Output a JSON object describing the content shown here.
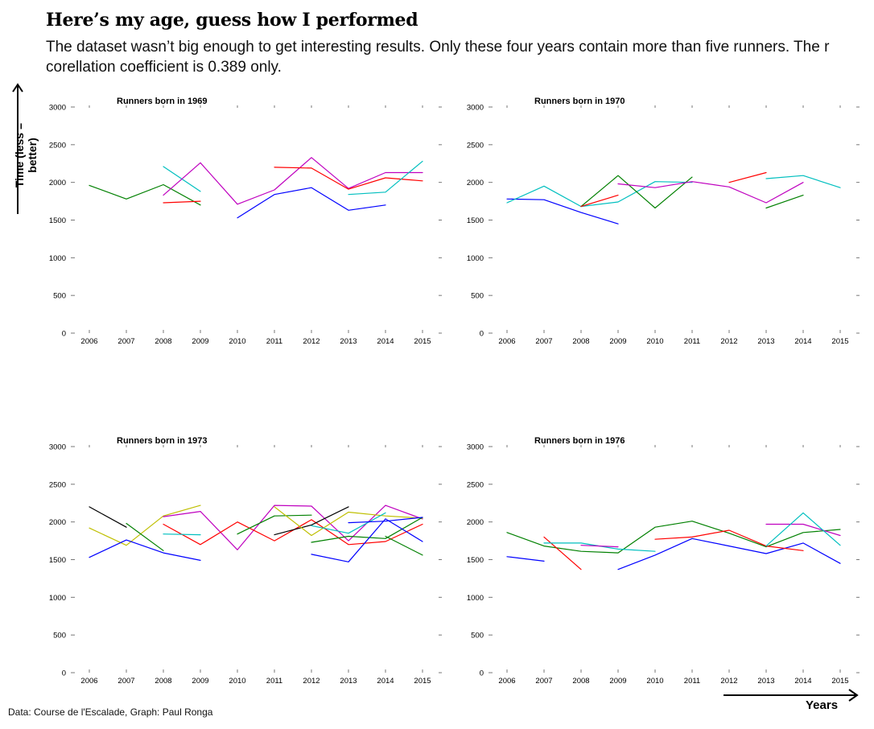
{
  "header": {
    "title": "Here’s my age, guess how I performed",
    "subtitle": "The dataset wasn’t big enough to get interesting results. Only these four years contain more than five runners. The r corellation coefficient is 0.389 only."
  },
  "footer": {
    "source": "Data: Course de l'Escalade, Graph: Paul Ronga"
  },
  "axes": {
    "ylabel": "Time (less = better)",
    "xlabel": "Years"
  },
  "chart_data": [
    {
      "type": "line",
      "title": "Runners born in 1969",
      "x": [
        2006,
        2007,
        2008,
        2009,
        2010,
        2011,
        2012,
        2013,
        2014,
        2015
      ],
      "ylim": [
        0,
        3000
      ],
      "yticks": [
        0,
        500,
        1000,
        1500,
        2000,
        2500,
        3000
      ],
      "grid": false,
      "series": [
        {
          "color": "#008000",
          "points": [
            [
              2006,
              1960
            ],
            [
              2007,
              1780
            ],
            [
              2008,
              1970
            ],
            [
              2009,
              1700
            ]
          ]
        },
        {
          "color": "#00bfbf",
          "points": [
            [
              2008,
              2210
            ],
            [
              2009,
              1880
            ]
          ]
        },
        {
          "color": "#ff0000",
          "points": [
            [
              2008,
              1730
            ],
            [
              2009,
              1750
            ]
          ]
        },
        {
          "color": "#bf00bf",
          "points": [
            [
              2008,
              1830
            ],
            [
              2009,
              2260
            ],
            [
              2010,
              1710
            ],
            [
              2011,
              1900
            ],
            [
              2012,
              2330
            ],
            [
              2013,
              1920
            ],
            [
              2014,
              2130
            ],
            [
              2015,
              2130
            ]
          ]
        },
        {
          "color": "#0000ff",
          "points": [
            [
              2010,
              1530
            ],
            [
              2011,
              1840
            ],
            [
              2012,
              1930
            ],
            [
              2013,
              1630
            ],
            [
              2014,
              1700
            ]
          ]
        },
        {
          "color": "#ff0000",
          "points": [
            [
              2011,
              2200
            ],
            [
              2012,
              2190
            ],
            [
              2013,
              1910
            ],
            [
              2014,
              2060
            ],
            [
              2015,
              2020
            ]
          ]
        },
        {
          "color": "#00bfbf",
          "points": [
            [
              2013,
              1840
            ],
            [
              2014,
              1870
            ],
            [
              2015,
              2280
            ]
          ]
        }
      ]
    },
    {
      "type": "line",
      "title": "Runners born in 1970",
      "x": [
        2006,
        2007,
        2008,
        2009,
        2010,
        2011,
        2012,
        2013,
        2014,
        2015
      ],
      "ylim": [
        0,
        3000
      ],
      "yticks": [
        0,
        500,
        1000,
        1500,
        2000,
        2500,
        3000
      ],
      "grid": false,
      "series": [
        {
          "color": "#0000ff",
          "points": [
            [
              2006,
              1780
            ],
            [
              2007,
              1770
            ],
            [
              2008,
              1600
            ],
            [
              2009,
              1450
            ]
          ]
        },
        {
          "color": "#00bfbf",
          "points": [
            [
              2006,
              1730
            ],
            [
              2007,
              1950
            ],
            [
              2008,
              1680
            ],
            [
              2009,
              1740
            ],
            [
              2010,
              2010
            ],
            [
              2011,
              2000
            ]
          ]
        },
        {
          "color": "#008000",
          "points": [
            [
              2008,
              1680
            ],
            [
              2009,
              2090
            ],
            [
              2010,
              1660
            ],
            [
              2011,
              2070
            ]
          ]
        },
        {
          "color": "#ff0000",
          "points": [
            [
              2008,
              1680
            ],
            [
              2009,
              1830
            ]
          ]
        },
        {
          "color": "#bf00bf",
          "points": [
            [
              2009,
              1980
            ],
            [
              2010,
              1930
            ],
            [
              2011,
              2010
            ],
            [
              2012,
              1940
            ],
            [
              2013,
              1730
            ],
            [
              2014,
              2000
            ]
          ]
        },
        {
          "color": "#ff0000",
          "points": [
            [
              2012,
              2000
            ],
            [
              2013,
              2130
            ]
          ]
        },
        {
          "color": "#00bfbf",
          "points": [
            [
              2013,
              2050
            ],
            [
              2014,
              2090
            ],
            [
              2015,
              1930
            ]
          ]
        },
        {
          "color": "#008000",
          "points": [
            [
              2013,
              1660
            ],
            [
              2014,
              1830
            ]
          ]
        }
      ]
    },
    {
      "type": "line",
      "title": "Runners born in 1973",
      "x": [
        2006,
        2007,
        2008,
        2009,
        2010,
        2011,
        2012,
        2013,
        2014,
        2015
      ],
      "ylim": [
        0,
        3000
      ],
      "yticks": [
        0,
        500,
        1000,
        1500,
        2000,
        2500,
        3000
      ],
      "grid": false,
      "series": [
        {
          "color": "#000000",
          "points": [
            [
              2006,
              2200
            ],
            [
              2007,
              1930
            ]
          ]
        },
        {
          "color": "#bfbf00",
          "points": [
            [
              2006,
              1920
            ],
            [
              2007,
              1690
            ],
            [
              2008,
              2080
            ],
            [
              2009,
              2220
            ]
          ]
        },
        {
          "color": "#0000ff",
          "points": [
            [
              2006,
              1530
            ],
            [
              2007,
              1760
            ],
            [
              2008,
              1590
            ],
            [
              2009,
              1490
            ]
          ]
        },
        {
          "color": "#008000",
          "points": [
            [
              2007,
              1980
            ],
            [
              2008,
              1620
            ]
          ]
        },
        {
          "color": "#bf00bf",
          "points": [
            [
              2008,
              2070
            ],
            [
              2009,
              2140
            ],
            [
              2010,
              1630
            ],
            [
              2011,
              2220
            ],
            [
              2012,
              2210
            ],
            [
              2013,
              1750
            ],
            [
              2014,
              2220
            ],
            [
              2015,
              2040
            ]
          ]
        },
        {
          "color": "#ff0000",
          "points": [
            [
              2008,
              1970
            ],
            [
              2009,
              1700
            ],
            [
              2010,
              2000
            ],
            [
              2011,
              1750
            ],
            [
              2012,
              2030
            ],
            [
              2013,
              1700
            ],
            [
              2014,
              1740
            ],
            [
              2015,
              1970
            ]
          ]
        },
        {
          "color": "#00bfbf",
          "points": [
            [
              2008,
              1840
            ],
            [
              2009,
              1830
            ]
          ]
        },
        {
          "color": "#008000",
          "points": [
            [
              2010,
              1840
            ],
            [
              2011,
              2080
            ],
            [
              2012,
              2090
            ]
          ]
        },
        {
          "color": "#000000",
          "points": [
            [
              2011,
              1830
            ],
            [
              2012,
              1960
            ],
            [
              2013,
              2200
            ]
          ]
        },
        {
          "color": "#bfbf00",
          "points": [
            [
              2011,
              2200
            ],
            [
              2012,
              1820
            ],
            [
              2013,
              2130
            ],
            [
              2014,
              2080
            ],
            [
              2015,
              2050
            ]
          ]
        },
        {
          "color": "#008000",
          "points": [
            [
              2012,
              1730
            ],
            [
              2013,
              1810
            ],
            [
              2014,
              1780
            ],
            [
              2015,
              2060
            ]
          ]
        },
        {
          "color": "#00bfbf",
          "points": [
            [
              2012,
              1950
            ],
            [
              2013,
              1850
            ],
            [
              2014,
              2120
            ]
          ]
        },
        {
          "color": "#0000ff",
          "points": [
            [
              2012,
              1570
            ],
            [
              2013,
              1470
            ],
            [
              2014,
              2040
            ],
            [
              2015,
              1740
            ]
          ]
        },
        {
          "color": "#0000ff",
          "points": [
            [
              2013,
              1990
            ],
            [
              2014,
              2010
            ],
            [
              2015,
              2060
            ]
          ]
        },
        {
          "color": "#008000",
          "points": [
            [
              2014,
              1810
            ],
            [
              2015,
              1560
            ]
          ]
        }
      ]
    },
    {
      "type": "line",
      "title": "Runners born in 1976",
      "x": [
        2006,
        2007,
        2008,
        2009,
        2010,
        2011,
        2012,
        2013,
        2014,
        2015
      ],
      "ylim": [
        0,
        3000
      ],
      "yticks": [
        0,
        500,
        1000,
        1500,
        2000,
        2500,
        3000
      ],
      "grid": false,
      "series": [
        {
          "color": "#008000",
          "points": [
            [
              2006,
              1860
            ],
            [
              2007,
              1680
            ],
            [
              2008,
              1610
            ],
            [
              2009,
              1590
            ],
            [
              2010,
              1930
            ],
            [
              2011,
              2010
            ],
            [
              2012,
              1850
            ],
            [
              2013,
              1670
            ],
            [
              2014,
              1860
            ],
            [
              2015,
              1900
            ]
          ]
        },
        {
          "color": "#0000ff",
          "points": [
            [
              2006,
              1540
            ],
            [
              2007,
              1480
            ]
          ]
        },
        {
          "color": "#ff0000",
          "points": [
            [
              2007,
              1800
            ],
            [
              2008,
              1370
            ]
          ]
        },
        {
          "color": "#00bfbf",
          "points": [
            [
              2007,
              1720
            ],
            [
              2008,
              1720
            ],
            [
              2009,
              1640
            ],
            [
              2010,
              1610
            ]
          ]
        },
        {
          "color": "#bf00bf",
          "points": [
            [
              2008,
              1690
            ],
            [
              2009,
              1670
            ]
          ]
        },
        {
          "color": "#0000ff",
          "points": [
            [
              2009,
              1370
            ],
            [
              2010,
              1560
            ],
            [
              2011,
              1780
            ],
            [
              2012,
              1680
            ],
            [
              2013,
              1580
            ],
            [
              2014,
              1720
            ],
            [
              2015,
              1450
            ]
          ]
        },
        {
          "color": "#ff0000",
          "points": [
            [
              2010,
              1770
            ],
            [
              2011,
              1800
            ],
            [
              2012,
              1890
            ],
            [
              2013,
              1680
            ],
            [
              2014,
              1620
            ]
          ]
        },
        {
          "color": "#bf00bf",
          "points": [
            [
              2013,
              1970
            ],
            [
              2014,
              1970
            ],
            [
              2015,
              1820
            ]
          ]
        },
        {
          "color": "#00bfbf",
          "points": [
            [
              2013,
              1680
            ],
            [
              2014,
              2120
            ],
            [
              2015,
              1690
            ]
          ]
        }
      ]
    }
  ]
}
